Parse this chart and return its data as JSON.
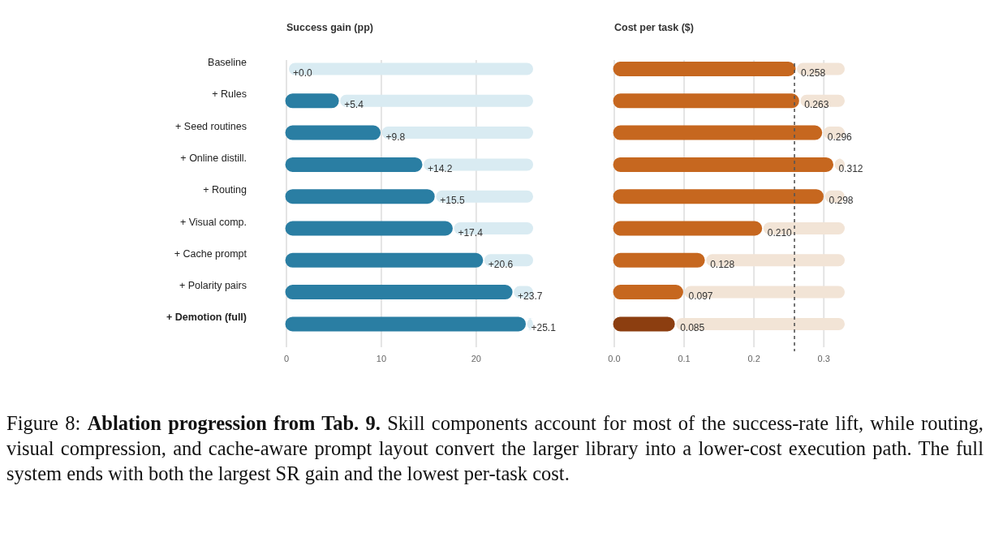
{
  "chart_data": [
    {
      "type": "bar",
      "orientation": "horizontal",
      "title": "Success gain (pp)",
      "categories": [
        "Baseline",
        "+ Rules",
        "+ Seed routines",
        "+ Online distill.",
        "+ Routing",
        "+ Visual comp.",
        "+ Cache prompt",
        "+ Polarity pairs",
        "+ Demotion (full)"
      ],
      "series": [
        {
          "color": "#2a7ea3",
          "values": [
            0,
            5.4,
            9.8,
            14.2,
            15.5,
            17.4,
            20.6,
            23.7,
            25.1
          ],
          "value_labels": [
            "+0.0",
            "+5.4",
            "+9.8",
            "+14.2",
            "+15.5",
            "+17.4",
            "+20.6",
            "+23.7",
            "+25.1"
          ]
        }
      ],
      "xlim": [
        0,
        26
      ],
      "xticks": [
        0,
        10,
        20
      ],
      "grid": "x",
      "annotations": [
        "Figure 8:",
        "Ablation progression from Tab. 9.",
        "Skill components account for most of the success-rate lift, while routing, visual compression, and cache-aware prompt layout convert the larger library into a lower-cost execution path. The full system ends with both the largest SR gain and the lowest per-task cost."
      ]
    },
    {
      "type": "bar",
      "orientation": "horizontal",
      "title": "Cost per task ($)",
      "categories": [
        null,
        null,
        null,
        null,
        null,
        null,
        null,
        null,
        null
      ],
      "series": [
        {
          "colors": [
            "#c6671f",
            "#c6671f",
            "#c6671f",
            "#c6671f",
            "#c6671f",
            "#c6671f",
            "#c6671f",
            "#c6671f",
            "#8c3e10"
          ],
          "values": [
            0.258,
            0.263,
            0.296,
            0.312,
            0.298,
            0.21,
            0.128,
            0.097,
            0.085
          ],
          "value_labels": [
            "0.258",
            "0.263",
            "0.296",
            "0.312",
            "0.298",
            "0.210",
            "0.128",
            "0.097",
            "0.085"
          ]
        }
      ],
      "xlim": [
        0,
        0.33
      ],
      "xticks": [
        {
          "value": 0,
          "label": "0.0"
        },
        0.1,
        0.2,
        0.3
      ],
      "grid": "x",
      "ref_lines": [
        {
          "axis": "x",
          "value": 0.258,
          "color": "#555555",
          "line_style": "dashed"
        }
      ]
    }
  ]
}
